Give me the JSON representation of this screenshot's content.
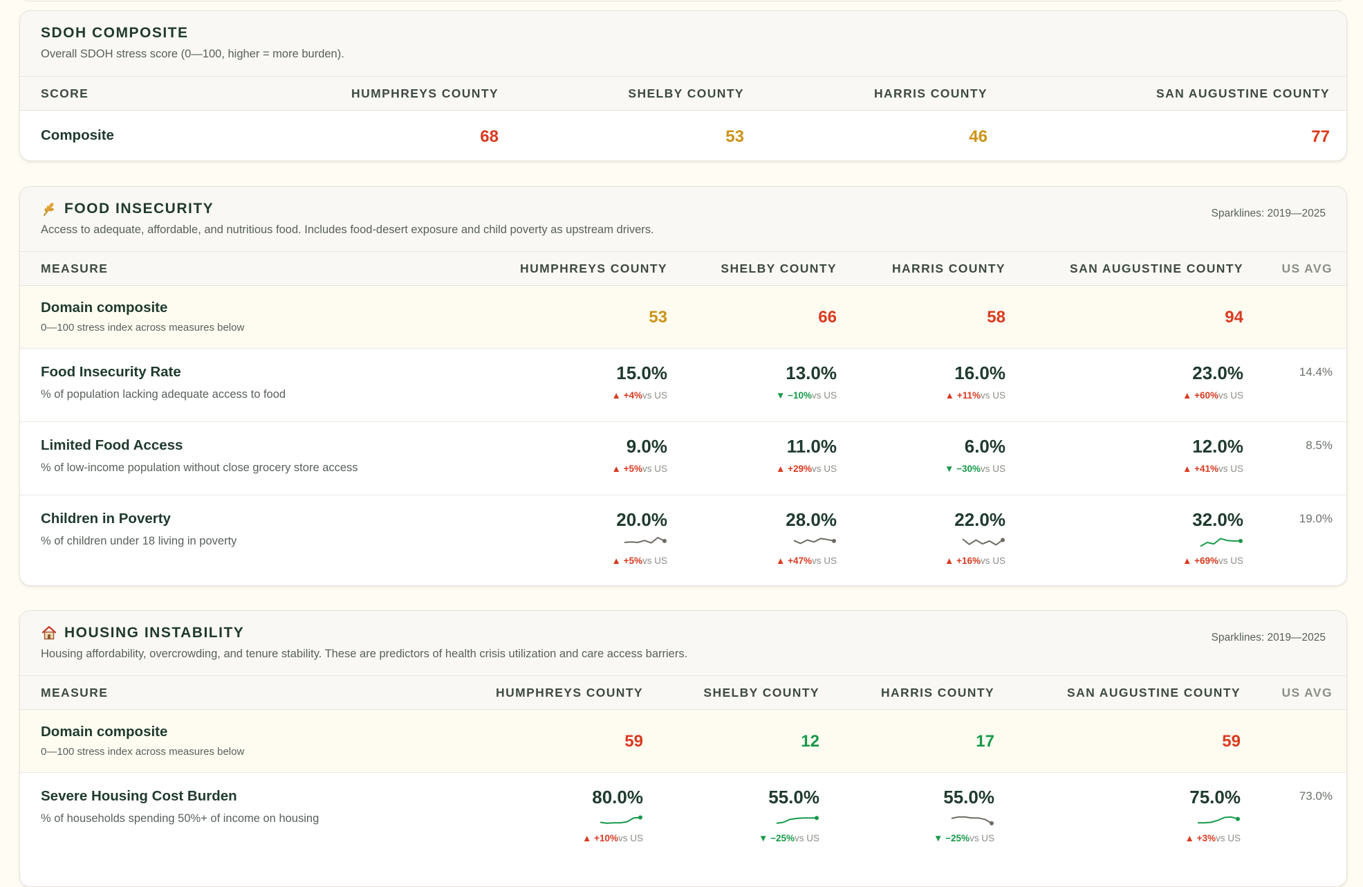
{
  "composite": {
    "title": "SDOH COMPOSITE",
    "subtitle": "Overall SDOH stress score (0—100, higher = more burden).",
    "headers": [
      "SCORE",
      "HUMPHREYS COUNTY",
      "SHELBY COUNTY",
      "HARRIS COUNTY",
      "SAN AUGUSTINE COUNTY"
    ],
    "row_label": "Composite",
    "values": [
      "68",
      "53",
      "46",
      "77"
    ],
    "value_colors": [
      "#d93a20",
      "#cc9317",
      "#cc9317",
      "#d93a20"
    ]
  },
  "food": {
    "icon": "wheat-icon",
    "title": "FOOD INSECURITY",
    "spark_note": "Sparklines: 2019—2025",
    "subtitle": "Access to adequate, affordable, and nutritious food. Includes food-desert exposure and child poverty as upstream drivers.",
    "headers": [
      "MEASURE",
      "HUMPHREYS COUNTY",
      "SHELBY COUNTY",
      "HARRIS COUNTY",
      "SAN AUGUSTINE COUNTY",
      "US AVG"
    ],
    "domain": {
      "label": "Domain composite",
      "desc": "0—100 stress index across measures below",
      "values": [
        "53",
        "66",
        "58",
        "94"
      ],
      "colors": [
        "#cc9317",
        "#d93a20",
        "#d93a20",
        "#d93a20"
      ]
    },
    "measures": [
      {
        "name": "Food Insecurity Rate",
        "desc": "% of population lacking adequate access to food",
        "us_avg": "14.4%",
        "cells": [
          {
            "value": "15.0%",
            "arrow": "▲",
            "delta": "+4%",
            "vs": "vs US",
            "dir": "up"
          },
          {
            "value": "13.0%",
            "arrow": "▼",
            "delta": "−10%",
            "vs": "vs US",
            "dir": "down"
          },
          {
            "value": "16.0%",
            "arrow": "▲",
            "delta": "+11%",
            "vs": "vs US",
            "dir": "up"
          },
          {
            "value": "23.0%",
            "arrow": "▲",
            "delta": "+60%",
            "vs": "vs US",
            "dir": "up"
          }
        ]
      },
      {
        "name": "Limited Food Access",
        "desc": "% of low-income population without close grocery store access",
        "us_avg": "8.5%",
        "cells": [
          {
            "value": "9.0%",
            "arrow": "▲",
            "delta": "+5%",
            "vs": "vs US",
            "dir": "up"
          },
          {
            "value": "11.0%",
            "arrow": "▲",
            "delta": "+29%",
            "vs": "vs US",
            "dir": "up"
          },
          {
            "value": "6.0%",
            "arrow": "▼",
            "delta": "−30%",
            "vs": "vs US",
            "dir": "down"
          },
          {
            "value": "12.0%",
            "arrow": "▲",
            "delta": "+41%",
            "vs": "vs US",
            "dir": "up"
          }
        ]
      },
      {
        "name": "Children in Poverty",
        "desc": "% of children under 18 living in poverty",
        "us_avg": "19.0%",
        "cells": [
          {
            "value": "20.0%",
            "arrow": "▲",
            "delta": "+5%",
            "vs": "vs US",
            "dir": "up",
            "spark": [
              0.5,
              0.45,
              0.5,
              0.3,
              0.55,
              0.0,
              0.35
            ],
            "spark_color": "#6e6a63"
          },
          {
            "value": "28.0%",
            "arrow": "▲",
            "delta": "+47%",
            "vs": "vs US",
            "dir": "up",
            "spark": [
              0.3,
              0.6,
              0.25,
              0.45,
              0.1,
              0.2,
              0.35
            ],
            "spark_color": "#6e6a63"
          },
          {
            "value": "22.0%",
            "arrow": "▲",
            "delta": "+16%",
            "vs": "vs US",
            "dir": "up",
            "spark": [
              0.15,
              0.7,
              0.25,
              0.65,
              0.35,
              0.75,
              0.25
            ],
            "spark_color": "#6e6a63"
          },
          {
            "value": "32.0%",
            "arrow": "▲",
            "delta": "+69%",
            "vs": "vs US",
            "dir": "up",
            "spark": [
              0.9,
              0.5,
              0.65,
              0.1,
              0.3,
              0.35,
              0.35
            ],
            "spark_color": "#17994a"
          }
        ]
      }
    ]
  },
  "housing": {
    "icon": "house-icon",
    "title": "HOUSING INSTABILITY",
    "spark_note": "Sparklines: 2019—2025",
    "subtitle": "Housing affordability, overcrowding, and tenure stability. These are predictors of health crisis utilization and care access barriers.",
    "headers": [
      "MEASURE",
      "HUMPHREYS COUNTY",
      "SHELBY COUNTY",
      "HARRIS COUNTY",
      "SAN AUGUSTINE COUNTY",
      "US AVG"
    ],
    "domain": {
      "label": "Domain composite",
      "desc": "0—100 stress index across measures below",
      "values": [
        "59",
        "12",
        "17",
        "59"
      ],
      "colors": [
        "#d93a20",
        "#17994a",
        "#17994a",
        "#d93a20"
      ]
    },
    "measures": [
      {
        "name": "Severe Housing Cost Burden",
        "desc": "% of households spending 50%+ of income on housing",
        "us_avg": "73.0%",
        "cells": [
          {
            "value": "80.0%",
            "arrow": "▲",
            "delta": "+10%",
            "vs": "vs US",
            "dir": "up",
            "spark": [
              0.75,
              0.85,
              0.8,
              0.8,
              0.7,
              0.3,
              0.25
            ],
            "spark_color": "#17994a"
          },
          {
            "value": "55.0%",
            "arrow": "▼",
            "delta": "−25%",
            "vs": "vs US",
            "dir": "down",
            "spark": [
              0.85,
              0.75,
              0.45,
              0.35,
              0.3,
              0.3,
              0.3
            ],
            "spark_color": "#17994a"
          },
          {
            "value": "55.0%",
            "arrow": "▼",
            "delta": "−25%",
            "vs": "vs US",
            "dir": "down",
            "spark": [
              0.35,
              0.2,
              0.2,
              0.3,
              0.3,
              0.45,
              0.85
            ],
            "spark_color": "#6e6a63"
          },
          {
            "value": "75.0%",
            "arrow": "▲",
            "delta": "+3%",
            "vs": "vs US",
            "dir": "up",
            "spark": [
              0.8,
              0.8,
              0.75,
              0.55,
              0.25,
              0.2,
              0.4
            ],
            "spark_color": "#17994a"
          }
        ]
      }
    ]
  }
}
